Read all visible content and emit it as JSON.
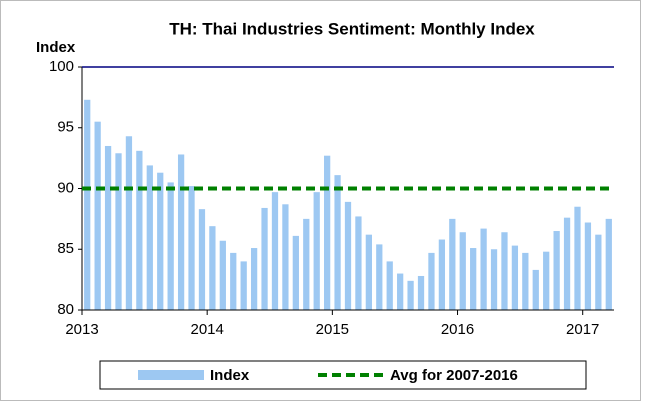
{
  "chart_data": {
    "type": "bar",
    "title": "TH: Thai Industries Sentiment: Monthly Index",
    "y_label": "Index",
    "categories": [
      "2013",
      null,
      null,
      null,
      null,
      null,
      null,
      null,
      null,
      null,
      null,
      null,
      "2014",
      null,
      null,
      null,
      null,
      null,
      null,
      null,
      null,
      null,
      null,
      null,
      "2015",
      null,
      null,
      null,
      null,
      null,
      null,
      null,
      null,
      null,
      null,
      null,
      "2016",
      null,
      null,
      null,
      null,
      null,
      null,
      null,
      null,
      null,
      null,
      null,
      "2017",
      null,
      null
    ],
    "series": [
      {
        "name": "Index",
        "color": "#9dc8f2",
        "values": [
          97.3,
          95.5,
          93.5,
          92.9,
          94.3,
          93.1,
          91.9,
          91.3,
          90.5,
          92.8,
          90.2,
          88.3,
          86.9,
          85.7,
          84.7,
          84.0,
          85.1,
          88.4,
          89.7,
          88.7,
          86.1,
          87.5,
          89.7,
          92.7,
          91.1,
          88.9,
          87.7,
          86.2,
          85.4,
          84.0,
          83.0,
          82.4,
          82.8,
          84.7,
          85.8,
          87.5,
          86.4,
          85.1,
          86.7,
          85.0,
          86.4,
          85.3,
          84.7,
          83.3,
          84.8,
          86.5,
          87.6,
          88.5,
          87.2,
          86.2,
          87.5
        ]
      }
    ],
    "average": {
      "name": "Avg for 2007-2016",
      "color": "#008000",
      "value": 90
    },
    "ylim": [
      80,
      100
    ],
    "yticks": [
      80,
      85,
      90,
      95,
      100
    ],
    "grid": false,
    "legend": "bottom"
  }
}
